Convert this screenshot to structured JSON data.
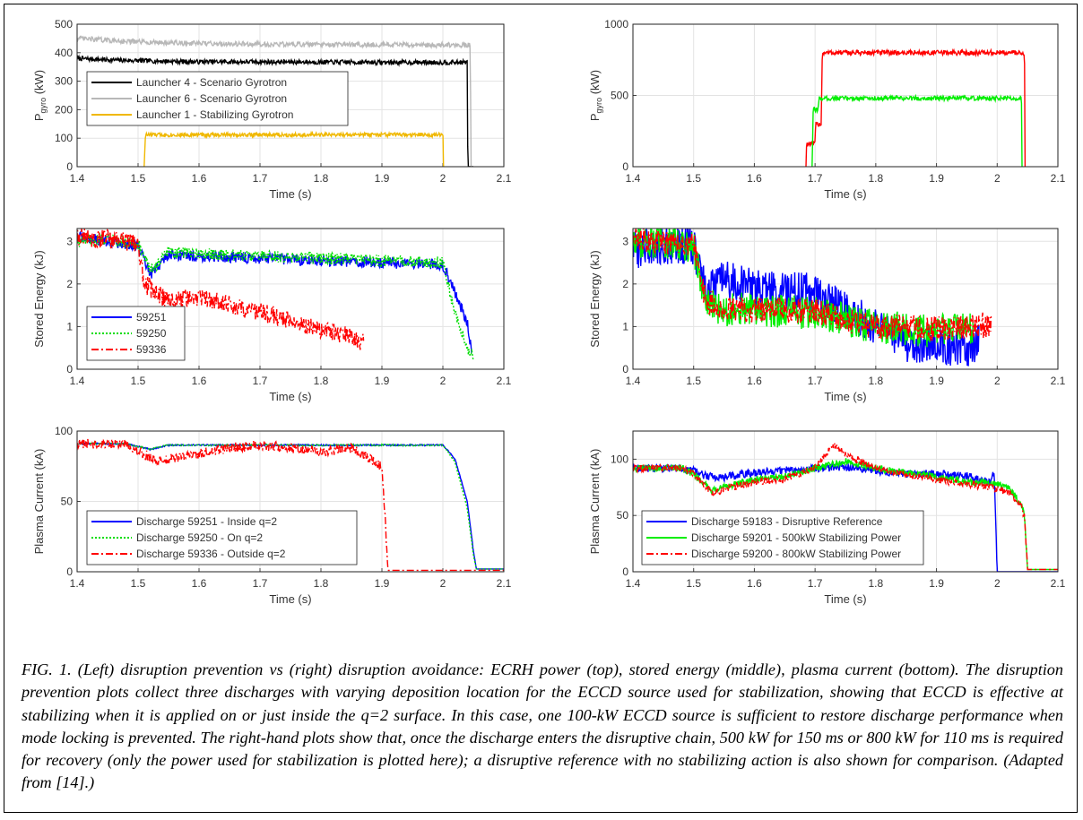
{
  "caption": "FIG. 1. (Left) disruption prevention vs (right) disruption avoidance: ECRH power (top), stored energy (middle), plasma current (bottom). The disruption prevention plots collect three discharges with varying deposition location for the ECCD source used for stabilization, showing that ECCD is effective at stabilizing when it is applied on or just inside the q=2 surface. In this case, one 100-kW ECCD source is sufficient to restore discharge performance when mode locking is prevented. The right-hand plots show that, once the discharge enters the disruptive chain, 500 kW for 150 ms or 800 kW for 110 ms is required for recovery (only the power used for stabilization is plotted here); a disruptive reference with no stabilizing action is also shown for comparison. (Adapted from [14].)",
  "chart_data": [
    {
      "id": "left-top",
      "type": "line",
      "xlabel": "Time (s)",
      "ylabel": "P",
      "ylabel_sub": "gyro",
      "ylabel_unit": "(kW)",
      "xlim": [
        1.4,
        2.1
      ],
      "ylim": [
        0,
        500
      ],
      "xticks": [
        1.4,
        1.5,
        1.6,
        1.7,
        1.8,
        1.9,
        2.0,
        2.1
      ],
      "yticks": [
        0,
        100,
        200,
        300,
        400,
        500
      ],
      "xtick_labels": [
        "1.4",
        "1.5",
        "1.6",
        "1.7",
        "1.8",
        "1.9",
        "2",
        "2.1"
      ],
      "ytick_labels": [
        "0",
        "100",
        "200",
        "300",
        "400",
        "500"
      ],
      "grid": true,
      "legend_position": "middle-left",
      "series": [
        {
          "name": "Launcher 4 - Scenario Gyrotron",
          "color": "#000000",
          "style": "solid",
          "x": [
            1.4,
            1.45,
            1.5,
            1.6,
            1.7,
            1.8,
            1.9,
            2.0,
            2.04,
            2.041,
            2.05
          ],
          "y": [
            380,
            375,
            372,
            368,
            368,
            367,
            366,
            366,
            366,
            0,
            0
          ],
          "noise": 8
        },
        {
          "name": "Launcher 6 - Scenario Gyrotron",
          "color": "#b8b8b8",
          "style": "solid",
          "x": [
            1.4,
            1.5,
            1.6,
            1.7,
            1.8,
            1.9,
            2.0,
            2.045,
            2.046,
            2.05
          ],
          "y": [
            450,
            438,
            432,
            430,
            428,
            428,
            427,
            427,
            0,
            0
          ],
          "noise": 9
        },
        {
          "name": "Launcher 1 - Stabilizing Gyrotron",
          "color": "#f0b800",
          "style": "solid",
          "x": [
            1.51,
            1.512,
            1.6,
            1.7,
            1.8,
            1.9,
            2.0,
            2.001
          ],
          "y": [
            0,
            112,
            112,
            112,
            112,
            112,
            112,
            0
          ],
          "noise": 7
        }
      ]
    },
    {
      "id": "right-top",
      "type": "line",
      "xlabel": "Time (s)",
      "ylabel": "P",
      "ylabel_sub": "gyro",
      "ylabel_unit": "(kW)",
      "xlim": [
        1.4,
        2.1
      ],
      "ylim": [
        0,
        1000
      ],
      "xticks": [
        1.4,
        1.5,
        1.6,
        1.7,
        1.8,
        1.9,
        2.0,
        2.1
      ],
      "yticks": [
        0,
        500,
        1000
      ],
      "xtick_labels": [
        "1.4",
        "1.5",
        "1.6",
        "1.7",
        "1.8",
        "1.9",
        "2",
        "2.1"
      ],
      "ytick_labels": [
        "0",
        "500",
        "1000"
      ],
      "grid": true,
      "legend_position": "none",
      "series": [
        {
          "name": "",
          "color": "#ff0000",
          "style": "solid",
          "x": [
            1.685,
            1.686,
            1.7,
            1.701,
            1.71,
            1.712,
            1.8,
            1.9,
            2.0,
            2.045,
            2.046
          ],
          "y": [
            0,
            160,
            160,
            300,
            300,
            800,
            800,
            800,
            800,
            800,
            0
          ],
          "noise": 18
        },
        {
          "name": "",
          "color": "#00ee00",
          "style": "solid",
          "x": [
            1.695,
            1.697,
            1.705,
            1.707,
            1.8,
            1.9,
            2.0,
            2.04,
            2.041
          ],
          "y": [
            0,
            400,
            400,
            480,
            480,
            480,
            480,
            480,
            0
          ],
          "noise": 16
        }
      ]
    },
    {
      "id": "left-mid",
      "type": "line",
      "xlabel": "Time (s)",
      "ylabel": "Stored Energy (kJ)",
      "xlim": [
        1.4,
        2.1
      ],
      "ylim": [
        0,
        3.3
      ],
      "xticks": [
        1.4,
        1.5,
        1.6,
        1.7,
        1.8,
        1.9,
        2.0,
        2.1
      ],
      "yticks": [
        0,
        1,
        2,
        3
      ],
      "xtick_labels": [
        "1.4",
        "1.5",
        "1.6",
        "1.7",
        "1.8",
        "1.9",
        "2",
        "2.1"
      ],
      "ytick_labels": [
        "0",
        "1",
        "2",
        "3"
      ],
      "grid": true,
      "legend_position": "lower-left",
      "series": [
        {
          "name": "59251",
          "color": "#0000ff",
          "style": "solid",
          "x": [
            1.4,
            1.45,
            1.5,
            1.52,
            1.55,
            1.6,
            1.7,
            1.8,
            1.9,
            2.0,
            2.02,
            2.04,
            2.047
          ],
          "y": [
            3.1,
            3.0,
            2.9,
            2.2,
            2.7,
            2.65,
            2.6,
            2.55,
            2.5,
            2.45,
            1.8,
            1.1,
            0.4
          ],
          "noise": 0.13
        },
        {
          "name": "59250",
          "color": "#00dd00",
          "style": "dotted",
          "x": [
            1.4,
            1.45,
            1.5,
            1.52,
            1.55,
            1.6,
            1.7,
            1.8,
            1.9,
            2.0,
            2.02,
            2.04,
            2.05
          ],
          "y": [
            3.0,
            3.05,
            2.95,
            2.3,
            2.75,
            2.7,
            2.65,
            2.6,
            2.55,
            2.5,
            1.3,
            0.5,
            0.3
          ],
          "noise": 0.14
        },
        {
          "name": "59336",
          "color": "#ff0000",
          "style": "dashdot",
          "x": [
            1.4,
            1.45,
            1.5,
            1.51,
            1.55,
            1.6,
            1.65,
            1.7,
            1.75,
            1.8,
            1.85,
            1.87
          ],
          "y": [
            3.1,
            3.05,
            2.95,
            2.0,
            1.6,
            1.7,
            1.5,
            1.35,
            1.15,
            0.95,
            0.75,
            0.6
          ],
          "noise": 0.22
        }
      ]
    },
    {
      "id": "right-mid",
      "type": "line",
      "xlabel": "Time (s)",
      "ylabel": "Stored Energy (kJ)",
      "xlim": [
        1.4,
        2.1
      ],
      "ylim": [
        0,
        3.3
      ],
      "xticks": [
        1.4,
        1.5,
        1.6,
        1.7,
        1.8,
        1.9,
        2.0,
        2.1
      ],
      "yticks": [
        0,
        1,
        2,
        3
      ],
      "xtick_labels": [
        "1.4",
        "1.5",
        "1.6",
        "1.7",
        "1.8",
        "1.9",
        "2",
        "2.1"
      ],
      "ytick_labels": [
        "0",
        "1",
        "2",
        "3"
      ],
      "grid": true,
      "legend_position": "none",
      "series": [
        {
          "name": "",
          "color": "#0000ff",
          "style": "solid",
          "x": [
            1.4,
            1.45,
            1.5,
            1.52,
            1.55,
            1.6,
            1.7,
            1.8,
            1.85,
            1.9,
            1.95,
            1.97
          ],
          "y": [
            2.8,
            2.9,
            2.9,
            1.8,
            2.1,
            1.9,
            1.8,
            1.0,
            0.6,
            0.6,
            0.4,
            0.7
          ],
          "noise": 0.45
        },
        {
          "name": "",
          "color": "#00ee00",
          "style": "solid",
          "x": [
            1.4,
            1.45,
            1.5,
            1.52,
            1.55,
            1.6,
            1.7,
            1.8,
            1.9,
            1.96
          ],
          "y": [
            3.0,
            3.0,
            2.9,
            1.5,
            1.4,
            1.4,
            1.3,
            1.0,
            0.9,
            1.0
          ],
          "noise": 0.4
        },
        {
          "name": "",
          "color": "#ff0000",
          "style": "dashdot",
          "x": [
            1.4,
            1.45,
            1.5,
            1.52,
            1.55,
            1.6,
            1.7,
            1.8,
            1.9,
            1.99
          ],
          "y": [
            3.05,
            3.0,
            2.95,
            1.6,
            1.4,
            1.4,
            1.35,
            1.0,
            0.95,
            1.05
          ],
          "noise": 0.3
        }
      ]
    },
    {
      "id": "left-bot",
      "type": "line",
      "xlabel": "Time (s)",
      "ylabel": "Plasma Current (kA)",
      "xlim": [
        1.4,
        2.1
      ],
      "ylim": [
        0,
        100
      ],
      "xticks": [
        1.4,
        1.5,
        1.6,
        1.7,
        1.8,
        1.9,
        2.0,
        2.1
      ],
      "yticks": [
        0,
        50,
        100
      ],
      "xtick_labels": [
        "1.4",
        "1.5",
        "1.6",
        "1.7",
        "1.8",
        "1.9",
        "2",
        "2.1"
      ],
      "ytick_labels": [
        "0",
        "50",
        "100"
      ],
      "grid": true,
      "legend_position": "lower-left",
      "series": [
        {
          "name": "Discharge 59251 - Inside q=2",
          "color": "#0000ff",
          "style": "solid",
          "x": [
            1.4,
            1.48,
            1.5,
            1.52,
            1.55,
            1.6,
            1.7,
            1.8,
            1.9,
            2.0,
            2.02,
            2.04,
            2.05,
            2.055,
            2.1
          ],
          "y": [
            91,
            91,
            89,
            87,
            90,
            90,
            90,
            90,
            90,
            90,
            80,
            50,
            15,
            2,
            2
          ],
          "noise": 0.5
        },
        {
          "name": "Discharge 59250 - On q=2",
          "color": "#00dd00",
          "style": "dotted",
          "x": [
            1.4,
            1.48,
            1.5,
            1.52,
            1.55,
            1.6,
            1.7,
            1.8,
            1.9,
            2.0,
            2.02,
            2.04,
            2.05,
            2.055,
            2.1
          ],
          "y": [
            91,
            91,
            89,
            87,
            90,
            90,
            90,
            90,
            90,
            90,
            78,
            45,
            12,
            2,
            2
          ],
          "noise": 0.5
        },
        {
          "name": "Discharge 59336 - Outside q=2",
          "color": "#ff0000",
          "style": "dashdot",
          "x": [
            1.4,
            1.48,
            1.5,
            1.53,
            1.55,
            1.6,
            1.65,
            1.7,
            1.75,
            1.8,
            1.85,
            1.88,
            1.9,
            1.905,
            1.91,
            2.1
          ],
          "y": [
            91,
            91,
            86,
            79,
            80,
            84,
            88,
            90,
            88,
            85,
            88,
            80,
            75,
            40,
            1,
            1
          ],
          "noise": 3.5
        }
      ]
    },
    {
      "id": "right-bot",
      "type": "line",
      "xlabel": "Time (s)",
      "ylabel": "Plasma Current (kA)",
      "xlim": [
        1.4,
        2.1
      ],
      "ylim": [
        0,
        125
      ],
      "xticks": [
        1.4,
        1.5,
        1.6,
        1.7,
        1.8,
        1.9,
        2.0,
        2.1
      ],
      "yticks": [
        0,
        50,
        100
      ],
      "xtick_labels": [
        "1.4",
        "1.5",
        "1.6",
        "1.7",
        "1.8",
        "1.9",
        "2",
        "2.1"
      ],
      "ytick_labels": [
        "0",
        "50",
        "100"
      ],
      "grid": true,
      "legend_position": "lower-left",
      "series": [
        {
          "name": "Discharge 59183 - Disruptive Reference",
          "color": "#0000ff",
          "style": "solid",
          "x": [
            1.4,
            1.48,
            1.5,
            1.52,
            1.55,
            1.6,
            1.65,
            1.7,
            1.75,
            1.8,
            1.85,
            1.9,
            1.95,
            1.99,
            1.995,
            2.0,
            2.002,
            2.1
          ],
          "y": [
            92,
            92,
            90,
            85,
            84,
            88,
            90,
            92,
            93,
            90,
            87,
            87,
            85,
            80,
            90,
            0,
            0,
            0
          ],
          "noise": 3.5
        },
        {
          "name": "Discharge 59201 - 500kW Stabilizing Power",
          "color": "#00ee00",
          "style": "solid",
          "x": [
            1.4,
            1.48,
            1.5,
            1.53,
            1.55,
            1.6,
            1.65,
            1.7,
            1.75,
            1.8,
            1.85,
            1.9,
            1.95,
            2.0,
            2.02,
            2.04,
            2.045,
            2.05,
            2.1
          ],
          "y": [
            92,
            92,
            87,
            72,
            75,
            82,
            85,
            92,
            98,
            92,
            88,
            84,
            80,
            78,
            74,
            60,
            50,
            2,
            2
          ],
          "noise": 3.0
        },
        {
          "name": "Discharge 59200 - 800kW Stabilizing Power",
          "color": "#ff0000",
          "style": "dashdot",
          "x": [
            1.4,
            1.48,
            1.5,
            1.53,
            1.55,
            1.6,
            1.65,
            1.7,
            1.73,
            1.76,
            1.8,
            1.85,
            1.9,
            1.95,
            2.0,
            2.02,
            2.04,
            2.045,
            2.05,
            2.1
          ],
          "y": [
            92,
            92,
            87,
            70,
            73,
            80,
            82,
            92,
            112,
            102,
            92,
            86,
            82,
            78,
            74,
            70,
            58,
            48,
            2,
            2
          ],
          "noise": 3.2
        }
      ]
    }
  ]
}
